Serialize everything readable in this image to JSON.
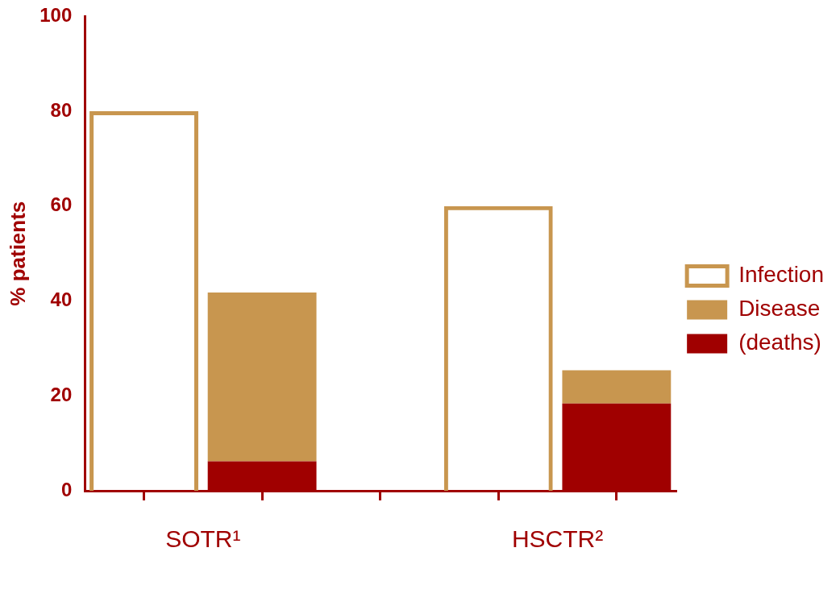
{
  "chart_data": {
    "type": "bar",
    "ylabel": "% patients",
    "categories": [
      null,
      null,
      null,
      null,
      null
    ],
    "stacked": true,
    "series": [
      {
        "name": "Infection",
        "color": "#c8964f",
        "values": [
          80,
          null,
          null,
          60,
          null
        ]
      },
      {
        "name": "(deaths)",
        "color": "#a00000",
        "values": [
          null,
          6.2,
          null,
          null,
          18.4
        ]
      },
      {
        "name": "Disease",
        "color": "#c8964f",
        "values": [
          null,
          35.6,
          null,
          null,
          7
        ]
      }
    ],
    "annotations": [
      "SOTR¹",
      "HSCTR²"
    ],
    "ylim": [
      0,
      100
    ],
    "yticks": [
      0,
      20,
      40,
      60,
      80,
      100
    ],
    "grid": false,
    "legend": "right"
  }
}
